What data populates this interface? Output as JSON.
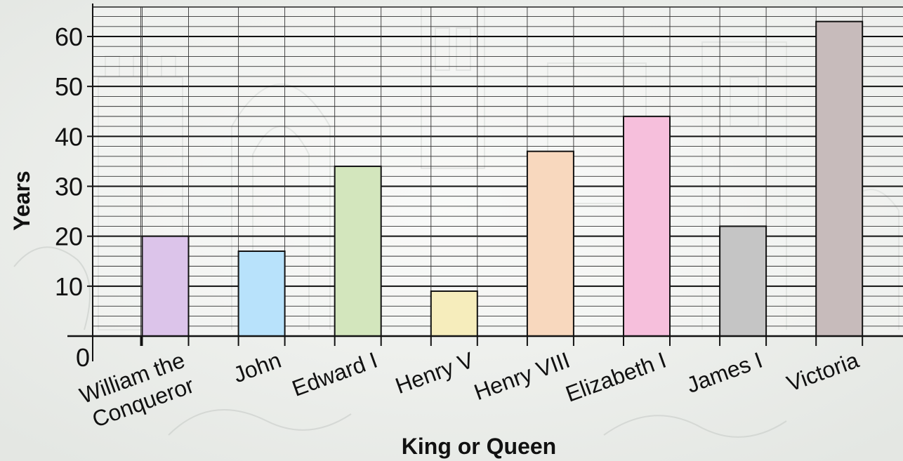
{
  "chart_data": {
    "type": "bar",
    "categories": [
      "William the Conqueror",
      "John",
      "Edward I",
      "Henry V",
      "Henry VIII",
      "Elizabeth I",
      "James I",
      "Victoria"
    ],
    "category_lines": [
      [
        "William the",
        "Conqueror"
      ],
      [
        "John"
      ],
      [
        "Edward I"
      ],
      [
        "Henry V"
      ],
      [
        "Henry VIII"
      ],
      [
        "Elizabeth I"
      ],
      [
        "James I"
      ],
      [
        "Victoria"
      ]
    ],
    "values": [
      20,
      17,
      34,
      9,
      37,
      44,
      22,
      63
    ],
    "colors": [
      "#dcc4ea",
      "#b8e2fb",
      "#d3e6bd",
      "#f6edbc",
      "#f8d8be",
      "#f6bfdc",
      "#c5c5c5",
      "#c7bbbb"
    ],
    "title": "",
    "xlabel": "King or Queen",
    "ylabel": "Years",
    "ylim": [
      0,
      65
    ],
    "yticks": [
      0,
      10,
      20,
      30,
      40,
      50,
      60
    ],
    "minor_grid_step": 2,
    "grid": true,
    "legend": "none"
  }
}
